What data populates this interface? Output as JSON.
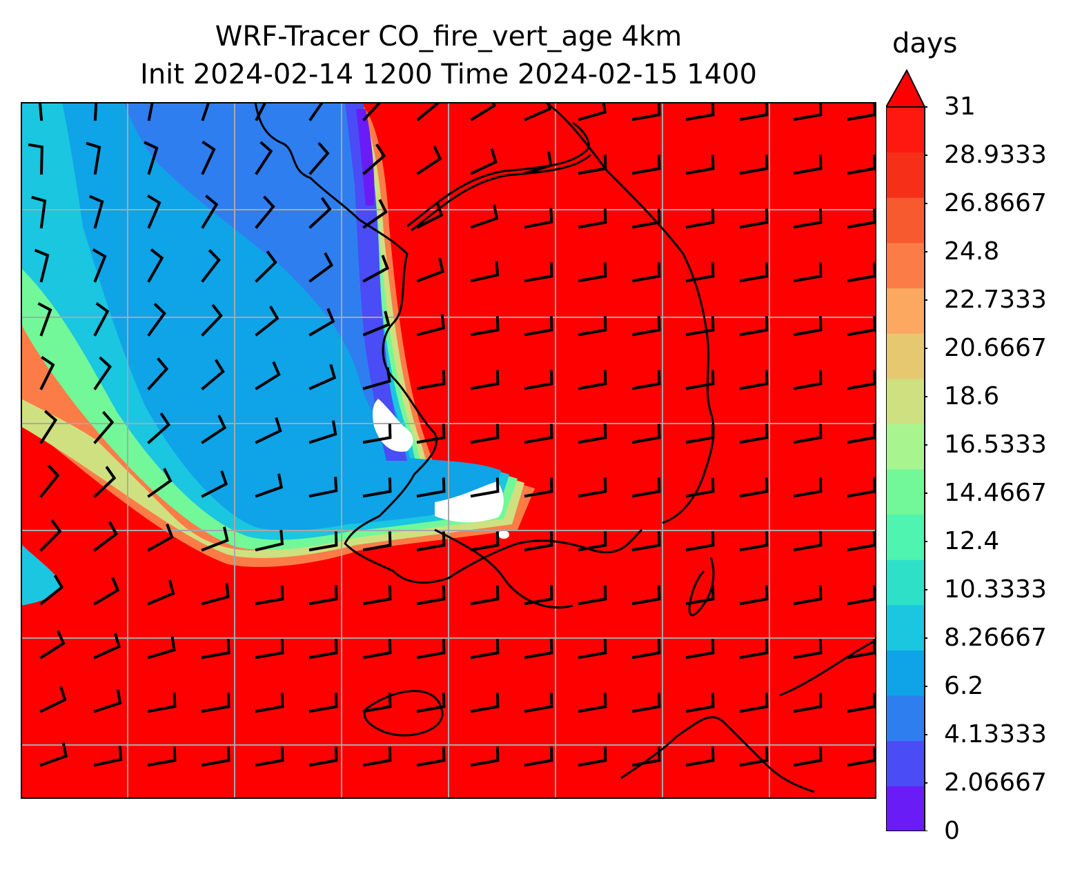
{
  "title": {
    "line1": "WRF-Tracer CO_fire_vert_age 4km",
    "line2": "Init 2024-02-14 1200 Time 2024-02-15 1400"
  },
  "colorbar": {
    "unit": "days",
    "ticks": [
      "0",
      "2.06667",
      "4.13333",
      "6.2",
      "8.26667",
      "10.3333",
      "12.4",
      "14.4667",
      "16.5333",
      "18.6",
      "20.6667",
      "22.7333",
      "24.8",
      "26.8667",
      "28.9333",
      "31"
    ],
    "tick_values": [
      0,
      2.06667,
      4.13333,
      6.2,
      8.26667,
      10.3333,
      12.4,
      14.4667,
      16.5333,
      18.6,
      20.6667,
      22.7333,
      24.8,
      26.8667,
      28.9333,
      31
    ],
    "extend": "max",
    "colors": [
      "#6a1cf7",
      "#4a4cf6",
      "#2f7ef0",
      "#0fa3e8",
      "#1ac6e0",
      "#2ee0c8",
      "#4ef4b0",
      "#72f898",
      "#a8f590",
      "#cfe080",
      "#e6c870",
      "#fca860",
      "#fc7c48",
      "#f85a30",
      "#f52f18",
      "#fe1810",
      "#fe0000"
    ],
    "over_color": "#fe0000"
  },
  "map": {
    "background_color": "#fe0000",
    "gridlines": true,
    "grid_color": "#a8a8a8",
    "features": [
      "wind-barbs",
      "coastlines",
      "borders"
    ]
  }
}
